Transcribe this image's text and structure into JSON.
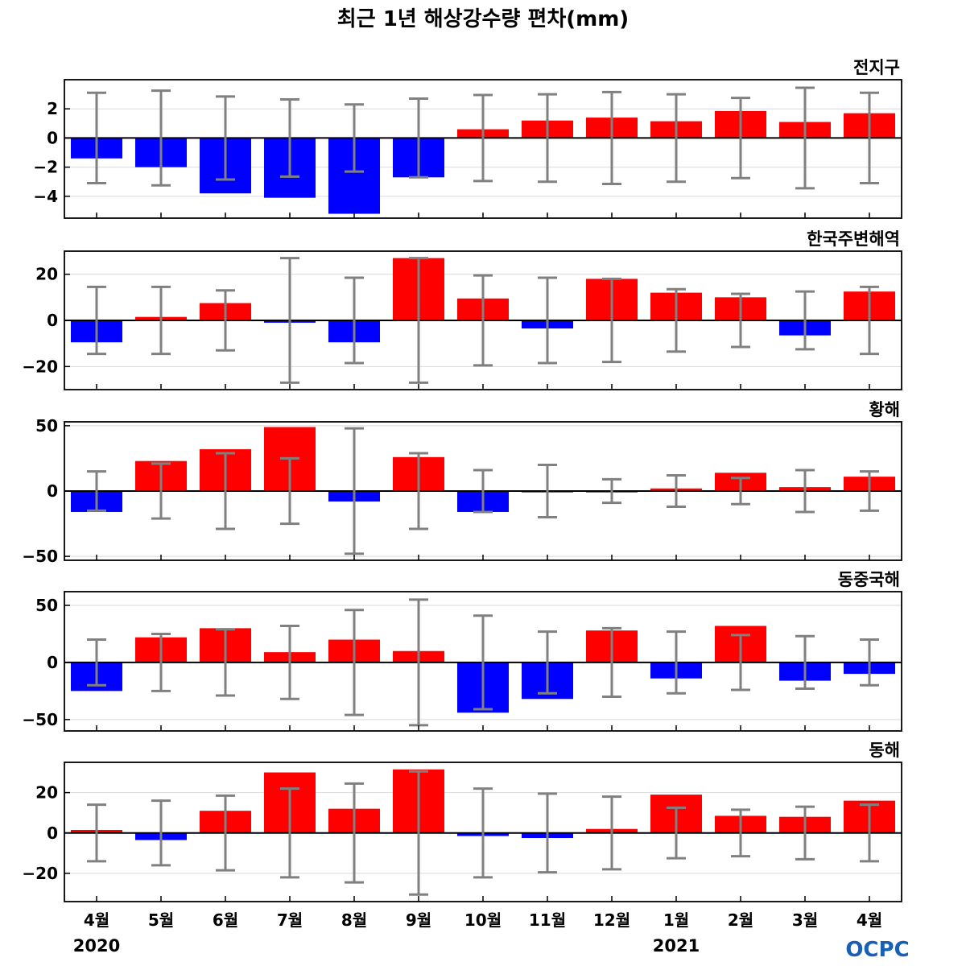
{
  "colors": {
    "positive": "#ff0000",
    "negative": "#0000ff",
    "error_bar": "#808080",
    "grid": "#d9d9d9",
    "logo": "#1a5fb4"
  },
  "logo_text": "OCPC",
  "chart_data": {
    "type": "bar",
    "title": "최근 1년 해상강수량 편차(mm)",
    "categories": [
      "4월",
      "5월",
      "6월",
      "7월",
      "8월",
      "9월",
      "10월",
      "11월",
      "12월",
      "1월",
      "2월",
      "3월",
      "4월"
    ],
    "year_labels": [
      {
        "text": "2020",
        "category_index": 0
      },
      {
        "text": "2021",
        "category_index": 9
      }
    ],
    "panels": [
      {
        "name": "전지구",
        "ylim": [
          -5.5,
          4
        ],
        "yticks": [
          2,
          0,
          -2,
          -4
        ],
        "ytick_labels": [
          "2",
          "0",
          "−2",
          "−4"
        ],
        "values": [
          -1.4,
          -2.0,
          -3.8,
          -4.1,
          -5.2,
          -2.7,
          0.6,
          1.2,
          1.4,
          1.15,
          1.85,
          1.1,
          1.7
        ],
        "error": [
          3.1,
          3.25,
          2.85,
          2.65,
          2.3,
          2.7,
          2.95,
          3.0,
          3.15,
          3.0,
          2.75,
          3.45,
          3.1
        ]
      },
      {
        "name": "한국주변해역",
        "ylim": [
          -30,
          30
        ],
        "yticks": [
          20,
          0,
          -20
        ],
        "ytick_labels": [
          "20",
          "0",
          "−20"
        ],
        "values": [
          -9.5,
          1.5,
          7.5,
          -1.0,
          -9.5,
          27.0,
          9.5,
          -3.5,
          18.0,
          12.0,
          10.0,
          -6.5,
          12.5
        ],
        "error": [
          14.5,
          14.5,
          13.0,
          27.0,
          18.5,
          27.0,
          19.5,
          18.5,
          18.0,
          13.5,
          11.5,
          12.5,
          14.5
        ]
      },
      {
        "name": "황해",
        "ylim": [
          -53,
          53
        ],
        "yticks": [
          50,
          0,
          -50
        ],
        "ytick_labels": [
          "50",
          "0",
          "−50"
        ],
        "values": [
          -16,
          23,
          32,
          49,
          -8,
          26,
          -16,
          -1,
          -1,
          2,
          14,
          3,
          11
        ],
        "error": [
          15,
          21,
          29,
          25,
          48,
          29,
          16,
          20,
          9,
          12,
          10,
          16,
          15
        ]
      },
      {
        "name": "동중국해",
        "ylim": [
          -60,
          62
        ],
        "yticks": [
          50,
          0,
          -50
        ],
        "ytick_labels": [
          "50",
          "0",
          "−50"
        ],
        "values": [
          -25,
          22,
          30,
          9,
          20,
          10,
          -44,
          -32,
          28,
          -14,
          32,
          -16,
          -10
        ],
        "error": [
          20,
          25,
          29,
          32,
          46,
          55,
          41,
          27,
          30,
          27,
          24,
          23,
          20
        ]
      },
      {
        "name": "동해",
        "ylim": [
          -34,
          35
        ],
        "yticks": [
          20,
          0,
          -20
        ],
        "ytick_labels": [
          "20",
          "0",
          "−20"
        ],
        "values": [
          1.5,
          -3.5,
          11,
          30,
          12,
          31.5,
          -1.5,
          -2.5,
          2,
          19,
          8.5,
          8,
          16
        ],
        "error": [
          14,
          16,
          18.5,
          22,
          24.5,
          30.5,
          22,
          19.5,
          18,
          12.5,
          11.5,
          13,
          14
        ]
      }
    ]
  }
}
